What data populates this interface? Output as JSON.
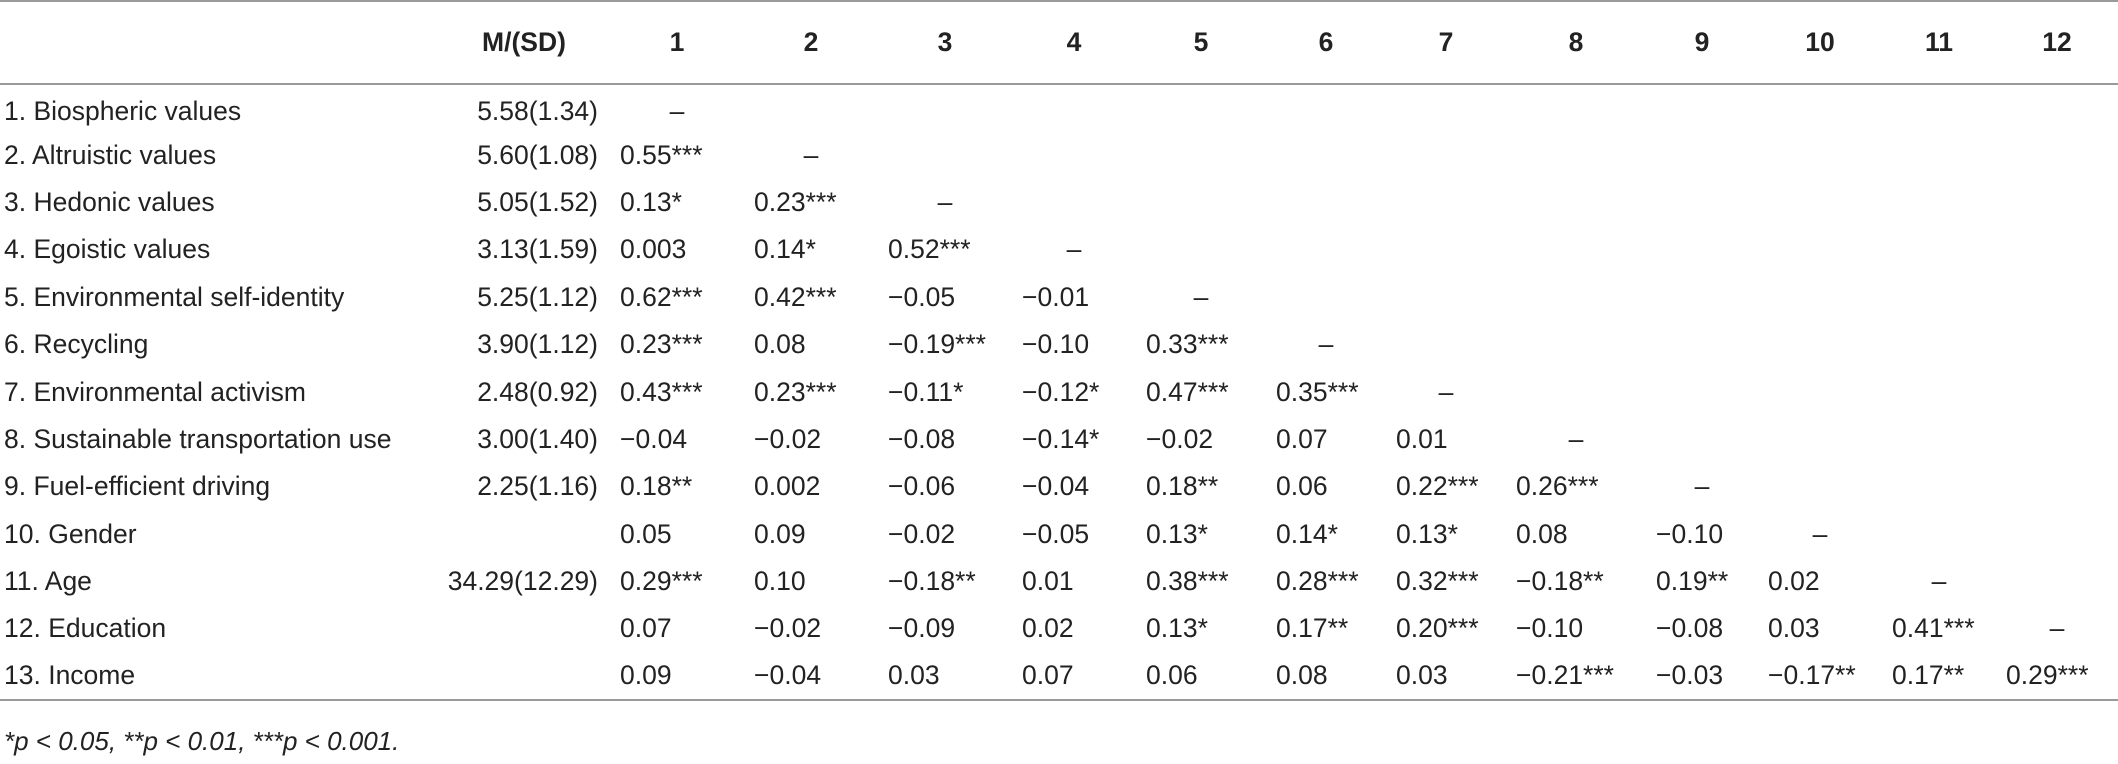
{
  "table": {
    "headers": [
      "",
      "M/(SD)",
      "1",
      "2",
      "3",
      "4",
      "5",
      "6",
      "7",
      "8",
      "9",
      "10",
      "11",
      "12"
    ],
    "rows": [
      {
        "label": "1. Biospheric values",
        "msd": "5.58(1.34)",
        "cells": [
          "–",
          "",
          "",
          "",
          "",
          "",
          "",
          "",
          "",
          "",
          "",
          ""
        ]
      },
      {
        "label": "2. Altruistic values",
        "msd": "5.60(1.08)",
        "cells": [
          "0.55***",
          "–",
          "",
          "",
          "",
          "",
          "",
          "",
          "",
          "",
          "",
          ""
        ]
      },
      {
        "label": "3. Hedonic values",
        "msd": "5.05(1.52)",
        "cells": [
          "0.13*",
          "0.23***",
          "–",
          "",
          "",
          "",
          "",
          "",
          "",
          "",
          "",
          ""
        ]
      },
      {
        "label": "4. Egoistic values",
        "msd": "3.13(1.59)",
        "cells": [
          "0.003",
          "0.14*",
          "0.52***",
          "–",
          "",
          "",
          "",
          "",
          "",
          "",
          "",
          ""
        ]
      },
      {
        "label": "5. Environmental self-identity",
        "msd": "5.25(1.12)",
        "cells": [
          "0.62***",
          "0.42***",
          "−0.05",
          "−0.01",
          "–",
          "",
          "",
          "",
          "",
          "",
          "",
          ""
        ]
      },
      {
        "label": "6. Recycling",
        "msd": "3.90(1.12)",
        "cells": [
          "0.23***",
          "0.08",
          "−0.19***",
          "−0.10",
          "0.33***",
          "–",
          "",
          "",
          "",
          "",
          "",
          ""
        ]
      },
      {
        "label": "7. Environmental activism",
        "msd": "2.48(0.92)",
        "cells": [
          "0.43***",
          "0.23***",
          "−0.11*",
          "−0.12*",
          "0.47***",
          "0.35***",
          "–",
          "",
          "",
          "",
          "",
          ""
        ]
      },
      {
        "label": "8. Sustainable transportation use",
        "msd": "3.00(1.40)",
        "cells": [
          "−0.04",
          "−0.02",
          "−0.08",
          "−0.14*",
          "−0.02",
          "0.07",
          "0.01",
          "–",
          "",
          "",
          "",
          ""
        ]
      },
      {
        "label": "9. Fuel-efficient driving",
        "msd": "2.25(1.16)",
        "cells": [
          "0.18**",
          "0.002",
          "−0.06",
          "−0.04",
          "0.18**",
          "0.06",
          "0.22***",
          "0.26***",
          "–",
          "",
          "",
          ""
        ]
      },
      {
        "label": "10. Gender",
        "msd": "",
        "cells": [
          "0.05",
          "0.09",
          "−0.02",
          "−0.05",
          "0.13*",
          "0.14*",
          "0.13*",
          "0.08",
          "−0.10",
          "–",
          "",
          ""
        ]
      },
      {
        "label": "11. Age",
        "msd": "34.29(12.29)",
        "cells": [
          "0.29***",
          "0.10",
          "−0.18**",
          "0.01",
          "0.38***",
          "0.28***",
          "0.32***",
          "−0.18**",
          "0.19**",
          "0.02",
          "–",
          ""
        ]
      },
      {
        "label": "12. Education",
        "msd": "",
        "cells": [
          "0.07",
          "−0.02",
          "−0.09",
          "0.02",
          "0.13*",
          "0.17**",
          "0.20***",
          "−0.10",
          "−0.08",
          "0.03",
          "0.41***",
          "–"
        ]
      },
      {
        "label": "13. Income",
        "msd": "",
        "cells": [
          "0.09",
          "−0.04",
          "0.03",
          "0.07",
          "0.06",
          "0.08",
          "0.03",
          "−0.21***",
          "−0.03",
          "−0.17**",
          "0.17**",
          "0.29***"
        ]
      }
    ]
  },
  "footnote": "*p < 0.05, **p < 0.01, ***p < 0.001."
}
